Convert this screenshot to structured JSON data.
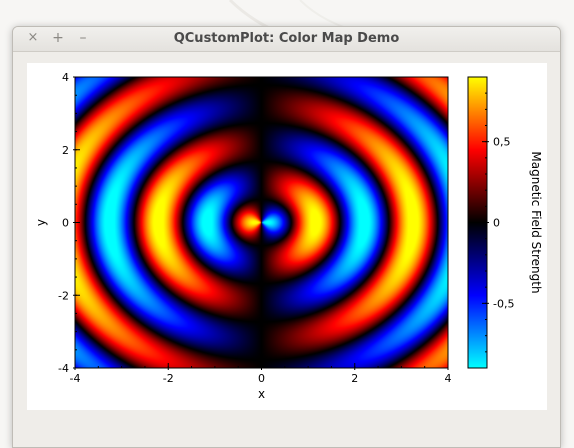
{
  "window": {
    "title": "QCustomPlot: Color Map Demo",
    "close_glyph": "×",
    "maximize_glyph": "+",
    "minimize_glyph": "–"
  },
  "chart_data": {
    "type": "heatmap",
    "title": "",
    "xlabel": "x",
    "ylabel": "y",
    "xlim": [
      -4,
      4
    ],
    "ylim": [
      -4,
      4
    ],
    "x_ticks": [
      -4,
      -2,
      0,
      2,
      4
    ],
    "y_ticks": [
      -4,
      -2,
      0,
      2,
      4
    ],
    "x_tick_labels": [
      "-4",
      "-2",
      "0",
      "2",
      "4"
    ],
    "y_tick_labels": [
      "-4",
      "-2",
      "0",
      "2",
      "4"
    ],
    "colorbar": {
      "label": "Magnetic Field Strength",
      "range": [
        -0.9,
        0.9
      ],
      "ticks": [
        0.5,
        0,
        -0.5
      ],
      "tick_labels": [
        "0,5",
        "0",
        "-0,5"
      ],
      "gradient": [
        "#00ffff",
        "#0000ff",
        "#000000",
        "#ff0000",
        "#ffff00"
      ]
    },
    "grid": false
  }
}
